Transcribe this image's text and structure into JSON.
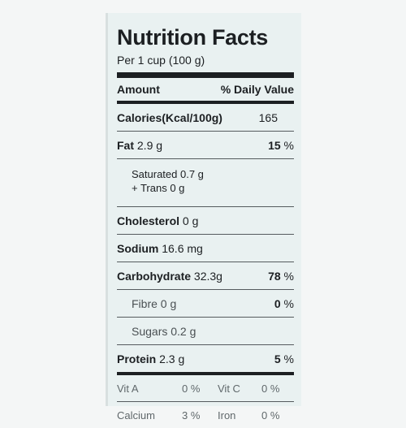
{
  "title": "Nutrition Facts",
  "serving": "Per 1 cup (100 g)",
  "header": {
    "amount": "Amount",
    "dv": "% Daily Value"
  },
  "calories": {
    "label": "Calories(Kcal/100g)",
    "value": "165"
  },
  "fat": {
    "label": "Fat",
    "amount": "2.9 g",
    "dv": "15",
    "pct": "%"
  },
  "saturated": "Saturated 0.7 g",
  "trans": "+ Trans 0 g",
  "cholesterol": {
    "label": "Cholesterol",
    "amount": "0 g"
  },
  "sodium": {
    "label": "Sodium",
    "amount": "16.6 mg"
  },
  "carbohydrate": {
    "label": "Carbohydrate",
    "amount": "32.3g",
    "dv": "78",
    "pct": "%"
  },
  "fibre": {
    "label": "Fibre 0 g",
    "dv": "0",
    "pct": "%"
  },
  "sugars": "Sugars 0.2 g",
  "protein": {
    "label": "Protein",
    "amount": "2.3 g",
    "dv": "5",
    "pct": "%"
  },
  "vitamins": {
    "vit_a": "Vit A",
    "vit_a_pct": "0 %",
    "vit_c": "Vit C",
    "vit_c_pct": "0 %",
    "calcium": "Calcium",
    "calcium_pct": "3 %",
    "iron": "Iron",
    "iron_pct": "0 %"
  }
}
